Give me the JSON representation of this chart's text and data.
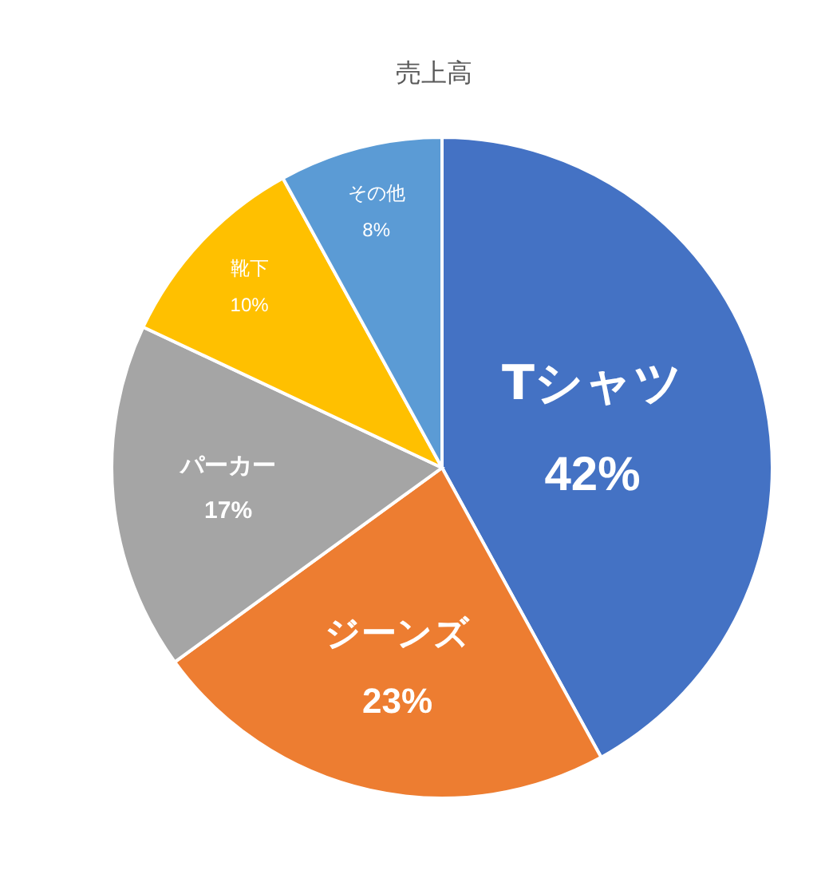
{
  "chart_data": {
    "type": "pie",
    "title": "売上高",
    "categories": [
      "Tシャツ",
      "ジーンズ",
      "パーカー",
      "靴下",
      "その他"
    ],
    "values": [
      42,
      23,
      17,
      10,
      8
    ],
    "colors": [
      "#4472c4",
      "#ed7d31",
      "#a5a5a5",
      "#ffc000",
      "#5b9bd5"
    ],
    "value_labels": [
      "42%",
      "23%",
      "17%",
      "10%",
      "8%"
    ],
    "legend": false
  }
}
